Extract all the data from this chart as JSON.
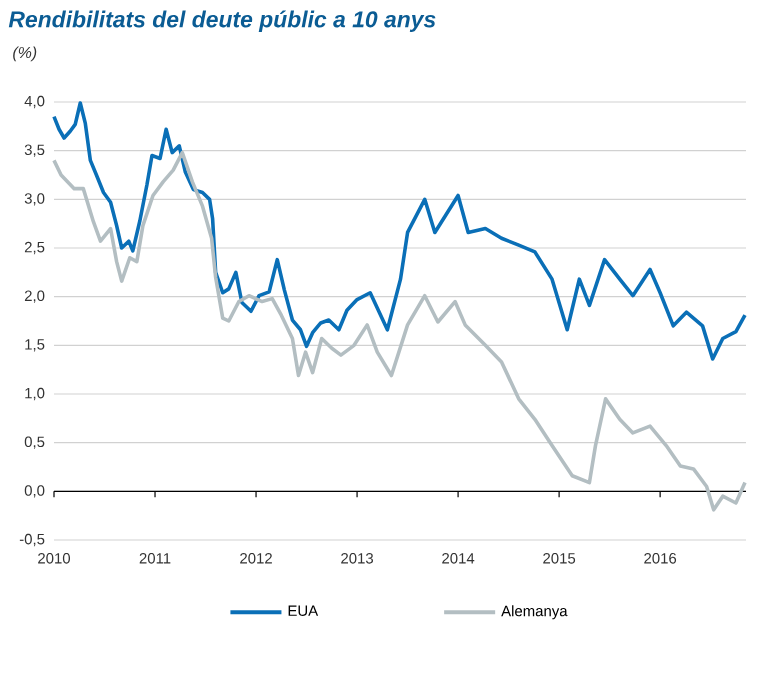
{
  "chart_data": {
    "type": "line",
    "title": "Rendibilitats del deute públic a 10 anys",
    "ylabel": "(%)",
    "xlim": [
      2010,
      2016.85
    ],
    "xticks": [
      2010,
      2011,
      2012,
      2013,
      2014,
      2015,
      2016
    ],
    "ylim": [
      -0.5,
      4.0
    ],
    "yticks": [
      {
        "value": -0.5,
        "label": "-0,5"
      },
      {
        "value": 0,
        "label": "0,0"
      },
      {
        "value": 0.5,
        "label": "0,5"
      },
      {
        "value": 1,
        "label": "1,0"
      },
      {
        "value": 1.5,
        "label": "1,5"
      },
      {
        "value": 2,
        "label": "2,0"
      },
      {
        "value": 2.5,
        "label": "2,5"
      },
      {
        "value": 3,
        "label": "3,0"
      },
      {
        "value": 3.5,
        "label": "3,5"
      },
      {
        "value": 4,
        "label": "4,0"
      }
    ],
    "grid": "y",
    "legend": "bottom",
    "marker": "none",
    "line_style": "solid",
    "series": [
      {
        "name": "EUA",
        "color": "#0a6fb7",
        "x": [
          2010.0,
          2010.05,
          2010.1,
          2010.16,
          2010.21,
          2010.26,
          2010.31,
          2010.36,
          2010.42,
          2010.49,
          2010.56,
          2010.62,
          2010.67,
          2010.74,
          2010.78,
          2010.85,
          2010.92,
          2010.97,
          2011.05,
          2011.11,
          2011.17,
          2011.24,
          2011.3,
          2011.38,
          2011.47,
          2011.54,
          2011.57,
          2011.6,
          2011.67,
          2011.73,
          2011.8,
          2011.86,
          2011.95,
          2012.03,
          2012.13,
          2012.21,
          2012.28,
          2012.36,
          2012.44,
          2012.5,
          2012.56,
          2012.64,
          2012.72,
          2012.82,
          2012.9,
          2013.0,
          2013.13,
          2013.3,
          2013.43,
          2013.5,
          2013.67,
          2013.77,
          2014.0,
          2014.1,
          2014.27,
          2014.43,
          2014.6,
          2014.76,
          2014.93,
          2015.08,
          2015.2,
          2015.3,
          2015.45,
          2015.6,
          2015.73,
          2015.9,
          2016.0,
          2016.13,
          2016.26,
          2016.42,
          2016.52,
          2016.62,
          2016.75,
          2016.84
        ],
        "values": [
          3.85,
          3.72,
          3.63,
          3.7,
          3.77,
          3.99,
          3.78,
          3.4,
          3.25,
          3.07,
          2.97,
          2.73,
          2.5,
          2.57,
          2.47,
          2.78,
          3.15,
          3.45,
          3.42,
          3.72,
          3.48,
          3.55,
          3.28,
          3.1,
          3.07,
          3.0,
          2.8,
          2.25,
          2.04,
          2.08,
          2.25,
          1.94,
          1.85,
          2.01,
          2.05,
          2.38,
          2.07,
          1.76,
          1.66,
          1.49,
          1.63,
          1.73,
          1.76,
          1.66,
          1.86,
          1.97,
          2.04,
          1.66,
          2.18,
          2.66,
          3.0,
          2.66,
          3.04,
          2.66,
          2.7,
          2.6,
          2.53,
          2.46,
          2.18,
          1.66,
          2.18,
          1.91,
          2.38,
          2.18,
          2.01,
          2.28,
          2.04,
          1.7,
          1.84,
          1.7,
          1.36,
          1.57,
          1.64,
          1.81
        ]
      },
      {
        "name": "Alemanya",
        "color": "#b3bec2",
        "x": [
          2010.0,
          2010.07,
          2010.2,
          2010.29,
          2010.39,
          2010.46,
          2010.56,
          2010.62,
          2010.67,
          2010.75,
          2010.82,
          2010.88,
          2010.98,
          2011.08,
          2011.18,
          2011.27,
          2011.37,
          2011.47,
          2011.56,
          2011.6,
          2011.67,
          2011.73,
          2011.83,
          2011.93,
          2012.06,
          2012.16,
          2012.25,
          2012.36,
          2012.42,
          2012.49,
          2012.56,
          2012.65,
          2012.75,
          2012.84,
          2012.97,
          2013.1,
          2013.2,
          2013.34,
          2013.5,
          2013.67,
          2013.8,
          2013.97,
          2014.07,
          2014.27,
          2014.43,
          2014.6,
          2014.76,
          2014.93,
          2015.13,
          2015.3,
          2015.36,
          2015.46,
          2015.6,
          2015.73,
          2015.9,
          2016.06,
          2016.2,
          2016.33,
          2016.46,
          2016.53,
          2016.62,
          2016.75,
          2016.84
        ],
        "values": [
          3.4,
          3.25,
          3.11,
          3.11,
          2.77,
          2.57,
          2.7,
          2.36,
          2.16,
          2.4,
          2.36,
          2.73,
          3.04,
          3.18,
          3.3,
          3.48,
          3.18,
          2.93,
          2.6,
          2.2,
          1.78,
          1.75,
          1.95,
          2.01,
          1.95,
          1.98,
          1.81,
          1.57,
          1.19,
          1.43,
          1.22,
          1.57,
          1.47,
          1.4,
          1.5,
          1.71,
          1.43,
          1.19,
          1.71,
          2.01,
          1.74,
          1.95,
          1.71,
          1.5,
          1.33,
          0.95,
          0.74,
          0.47,
          0.16,
          0.09,
          0.47,
          0.95,
          0.74,
          0.6,
          0.67,
          0.47,
          0.26,
          0.23,
          0.05,
          -0.19,
          -0.05,
          -0.12,
          0.09
        ]
      }
    ]
  }
}
